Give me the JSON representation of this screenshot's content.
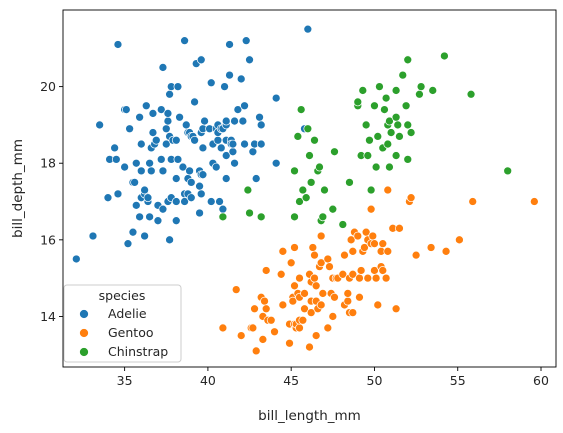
{
  "chart_data": {
    "type": "scatter",
    "xlabel": "bill_length_mm",
    "ylabel": "bill_depth_mm",
    "xlim": [
      31.3,
      60.9
    ],
    "ylim": [
      12.68,
      22.0
    ],
    "xticks": [
      35,
      40,
      45,
      50,
      55,
      60
    ],
    "yticks": [
      14,
      16,
      18,
      20
    ],
    "grid": false,
    "legend": {
      "title": "species",
      "position": "lower-left"
    },
    "series": [
      {
        "name": "Adelie",
        "color": "#1f77b4",
        "points": [
          [
            32.1,
            15.5
          ],
          [
            33.1,
            16.1
          ],
          [
            33.5,
            19.0
          ],
          [
            34.0,
            17.1
          ],
          [
            34.1,
            18.1
          ],
          [
            34.4,
            18.4
          ],
          [
            34.5,
            18.1
          ],
          [
            34.6,
            21.1
          ],
          [
            34.6,
            17.2
          ],
          [
            35.0,
            17.9
          ],
          [
            35.0,
            19.4
          ],
          [
            35.1,
            19.4
          ],
          [
            35.2,
            15.9
          ],
          [
            35.3,
            18.9
          ],
          [
            35.5,
            16.2
          ],
          [
            35.5,
            17.5
          ],
          [
            35.6,
            17.5
          ],
          [
            35.7,
            16.9
          ],
          [
            35.7,
            18.0
          ],
          [
            35.9,
            19.2
          ],
          [
            35.9,
            16.6
          ],
          [
            36.0,
            17.8
          ],
          [
            36.0,
            18.5
          ],
          [
            36.0,
            17.1
          ],
          [
            36.2,
            16.1
          ],
          [
            36.2,
            17.2
          ],
          [
            36.2,
            17.3
          ],
          [
            36.3,
            19.5
          ],
          [
            36.4,
            17.0
          ],
          [
            36.4,
            17.1
          ],
          [
            36.5,
            16.6
          ],
          [
            36.5,
            18.0
          ],
          [
            36.6,
            17.8
          ],
          [
            36.6,
            18.4
          ],
          [
            36.7,
            18.8
          ],
          [
            36.7,
            19.3
          ],
          [
            36.8,
            18.5
          ],
          [
            36.9,
            18.6
          ],
          [
            37.0,
            16.9
          ],
          [
            37.0,
            16.5
          ],
          [
            37.2,
            18.1
          ],
          [
            37.2,
            19.4
          ],
          [
            37.3,
            16.8
          ],
          [
            37.3,
            17.8
          ],
          [
            37.3,
            20.5
          ],
          [
            37.5,
            18.9
          ],
          [
            37.5,
            18.5
          ],
          [
            37.6,
            17.0
          ],
          [
            37.6,
            19.1
          ],
          [
            37.6,
            19.3
          ],
          [
            37.7,
            18.7
          ],
          [
            37.7,
            16.0
          ],
          [
            37.7,
            19.8
          ],
          [
            37.8,
            17.1
          ],
          [
            37.8,
            18.1
          ],
          [
            37.8,
            20.0
          ],
          [
            37.9,
            18.6
          ],
          [
            38.1,
            18.6
          ],
          [
            38.1,
            16.5
          ],
          [
            38.1,
            17.0
          ],
          [
            38.1,
            17.6
          ],
          [
            38.2,
            18.1
          ],
          [
            38.2,
            20.0
          ],
          [
            38.3,
            19.2
          ],
          [
            38.5,
            17.9
          ],
          [
            38.6,
            17.2
          ],
          [
            38.6,
            21.2
          ],
          [
            38.6,
            17.0
          ],
          [
            38.7,
            19.0
          ],
          [
            38.8,
            17.2
          ],
          [
            38.8,
            18.8
          ],
          [
            38.8,
            17.6
          ],
          [
            38.9,
            17.8
          ],
          [
            38.9,
            18.8
          ],
          [
            39.0,
            17.1
          ],
          [
            39.0,
            17.5
          ],
          [
            39.0,
            18.7
          ],
          [
            39.1,
            18.7
          ],
          [
            39.2,
            19.6
          ],
          [
            39.2,
            18.6
          ],
          [
            39.3,
            20.6
          ],
          [
            39.5,
            17.4
          ],
          [
            39.5,
            16.7
          ],
          [
            39.5,
            17.8
          ],
          [
            39.6,
            17.7
          ],
          [
            39.6,
            18.8
          ],
          [
            39.6,
            17.2
          ],
          [
            39.6,
            20.7
          ],
          [
            39.7,
            18.4
          ],
          [
            39.7,
            17.7
          ],
          [
            39.7,
            18.9
          ],
          [
            39.8,
            19.1
          ],
          [
            40.1,
            18.9
          ],
          [
            40.2,
            20.1
          ],
          [
            40.2,
            17.0
          ],
          [
            40.3,
            18.0
          ],
          [
            40.3,
            18.5
          ],
          [
            40.5,
            18.9
          ],
          [
            40.5,
            17.9
          ],
          [
            40.6,
            18.6
          ],
          [
            40.6,
            18.8
          ],
          [
            40.6,
            19.0
          ],
          [
            40.7,
            17.0
          ],
          [
            40.8,
            18.4
          ],
          [
            40.8,
            18.9
          ],
          [
            40.9,
            18.9
          ],
          [
            40.9,
            16.8
          ],
          [
            41.0,
            20.0
          ],
          [
            41.1,
            18.6
          ],
          [
            41.1,
            17.6
          ],
          [
            41.1,
            19.0
          ],
          [
            41.1,
            18.2
          ],
          [
            41.1,
            19.1
          ],
          [
            41.3,
            20.3
          ],
          [
            41.3,
            21.1
          ],
          [
            41.4,
            18.6
          ],
          [
            41.4,
            18.5
          ],
          [
            41.5,
            18.3
          ],
          [
            41.5,
            18.5
          ],
          [
            41.6,
            18.0
          ],
          [
            41.6,
            19.1
          ],
          [
            41.8,
            19.4
          ],
          [
            42.0,
            20.2
          ],
          [
            42.1,
            19.1
          ],
          [
            42.2,
            18.5
          ],
          [
            42.2,
            19.5
          ],
          [
            42.3,
            21.2
          ],
          [
            42.5,
            20.7
          ],
          [
            42.7,
            18.3
          ],
          [
            42.8,
            18.5
          ],
          [
            42.9,
            17.6
          ],
          [
            43.1,
            19.2
          ],
          [
            43.2,
            19.0
          ],
          [
            43.2,
            18.5
          ],
          [
            44.1,
            19.7
          ],
          [
            44.1,
            18.0
          ],
          [
            45.8,
            18.9
          ],
          [
            46.0,
            21.5
          ]
        ]
      },
      {
        "name": "Gentoo",
        "color": "#ff7f0e",
        "points": [
          [
            40.9,
            13.7
          ],
          [
            41.7,
            14.7
          ],
          [
            42.0,
            13.5
          ],
          [
            42.6,
            13.7
          ],
          [
            42.7,
            13.7
          ],
          [
            42.8,
            14.2
          ],
          [
            42.9,
            13.1
          ],
          [
            43.2,
            14.5
          ],
          [
            43.3,
            13.4
          ],
          [
            43.3,
            14.0
          ],
          [
            43.4,
            14.4
          ],
          [
            43.5,
            14.2
          ],
          [
            43.5,
            15.2
          ],
          [
            43.6,
            13.9
          ],
          [
            43.8,
            13.9
          ],
          [
            44.0,
            13.6
          ],
          [
            44.4,
            15.1
          ],
          [
            44.5,
            14.3
          ],
          [
            44.5,
            15.7
          ],
          [
            44.9,
            13.3
          ],
          [
            44.9,
            13.8
          ],
          [
            45.0,
            15.4
          ],
          [
            45.1,
            14.5
          ],
          [
            45.1,
            14.4
          ],
          [
            45.2,
            13.8
          ],
          [
            45.2,
            14.8
          ],
          [
            45.2,
            15.8
          ],
          [
            45.3,
            13.7
          ],
          [
            45.3,
            13.8
          ],
          [
            45.4,
            14.6
          ],
          [
            45.5,
            13.7
          ],
          [
            45.5,
            13.9
          ],
          [
            45.5,
            14.5
          ],
          [
            45.5,
            15.0
          ],
          [
            45.7,
            13.9
          ],
          [
            45.8,
            14.2
          ],
          [
            45.8,
            14.6
          ],
          [
            46.1,
            13.2
          ],
          [
            46.1,
            15.1
          ],
          [
            46.2,
            14.1
          ],
          [
            46.2,
            14.9
          ],
          [
            46.2,
            14.4
          ],
          [
            46.3,
            15.8
          ],
          [
            46.4,
            15.0
          ],
          [
            46.4,
            15.6
          ],
          [
            46.5,
            13.5
          ],
          [
            46.5,
            14.4
          ],
          [
            46.5,
            14.8
          ],
          [
            46.6,
            14.2
          ],
          [
            46.7,
            15.3
          ],
          [
            46.8,
            14.3
          ],
          [
            46.8,
            15.4
          ],
          [
            46.8,
            16.1
          ],
          [
            46.9,
            14.6
          ],
          [
            47.2,
            13.7
          ],
          [
            47.2,
            15.5
          ],
          [
            47.3,
            15.3
          ],
          [
            47.4,
            14.6
          ],
          [
            47.5,
            14.0
          ],
          [
            47.5,
            15.0
          ],
          [
            47.6,
            14.5
          ],
          [
            47.7,
            15.0
          ],
          [
            47.8,
            15.0
          ],
          [
            48.1,
            15.1
          ],
          [
            48.2,
            14.3
          ],
          [
            48.2,
            15.6
          ],
          [
            48.4,
            14.4
          ],
          [
            48.4,
            14.6
          ],
          [
            48.5,
            14.1
          ],
          [
            48.5,
            15.0
          ],
          [
            48.6,
            16.0
          ],
          [
            48.7,
            14.1
          ],
          [
            48.7,
            15.1
          ],
          [
            48.7,
            15.7
          ],
          [
            48.8,
            16.2
          ],
          [
            49.0,
            16.1
          ],
          [
            49.1,
            14.5
          ],
          [
            49.1,
            15.0
          ],
          [
            49.2,
            15.2
          ],
          [
            49.3,
            15.7
          ],
          [
            49.4,
            15.8
          ],
          [
            49.5,
            16.2
          ],
          [
            49.6,
            15.0
          ],
          [
            49.6,
            16.0
          ],
          [
            49.8,
            15.9
          ],
          [
            49.8,
            16.8
          ],
          [
            49.9,
            16.1
          ],
          [
            50.0,
            15.2
          ],
          [
            50.0,
            15.9
          ],
          [
            50.1,
            15.0
          ],
          [
            50.2,
            14.3
          ],
          [
            50.4,
            15.3
          ],
          [
            50.4,
            15.7
          ],
          [
            50.5,
            15.2
          ],
          [
            50.5,
            15.9
          ],
          [
            50.7,
            15.0
          ],
          [
            50.8,
            15.7
          ],
          [
            50.8,
            17.3
          ],
          [
            51.1,
            16.3
          ],
          [
            51.3,
            14.2
          ],
          [
            51.5,
            16.3
          ],
          [
            52.1,
            17.0
          ],
          [
            52.2,
            17.1
          ],
          [
            52.5,
            15.6
          ],
          [
            53.4,
            15.8
          ],
          [
            54.3,
            15.7
          ],
          [
            55.1,
            16.0
          ],
          [
            55.9,
            17.0
          ],
          [
            59.6,
            17.0
          ]
        ]
      },
      {
        "name": "Chinstrap",
        "color": "#2ca02c",
        "points": [
          [
            40.9,
            16.6
          ],
          [
            42.4,
            17.3
          ],
          [
            42.5,
            16.7
          ],
          [
            43.2,
            16.6
          ],
          [
            45.2,
            16.6
          ],
          [
            45.2,
            17.8
          ],
          [
            45.4,
            18.7
          ],
          [
            45.5,
            17.0
          ],
          [
            45.6,
            19.4
          ],
          [
            45.7,
            17.3
          ],
          [
            45.9,
            17.1
          ],
          [
            46.0,
            18.9
          ],
          [
            46.1,
            18.2
          ],
          [
            46.2,
            17.5
          ],
          [
            46.4,
            18.6
          ],
          [
            46.6,
            17.8
          ],
          [
            46.7,
            17.9
          ],
          [
            46.8,
            16.5
          ],
          [
            46.9,
            16.6
          ],
          [
            47.0,
            17.3
          ],
          [
            47.5,
            16.8
          ],
          [
            47.6,
            18.3
          ],
          [
            48.1,
            16.4
          ],
          [
            48.5,
            17.5
          ],
          [
            49.0,
            19.5
          ],
          [
            49.0,
            19.6
          ],
          [
            49.2,
            18.2
          ],
          [
            49.3,
            19.9
          ],
          [
            49.5,
            19.0
          ],
          [
            49.6,
            18.2
          ],
          [
            49.7,
            18.6
          ],
          [
            49.8,
            17.3
          ],
          [
            50.0,
            19.5
          ],
          [
            50.1,
            17.9
          ],
          [
            50.2,
            18.7
          ],
          [
            50.3,
            20.0
          ],
          [
            50.5,
            18.4
          ],
          [
            50.6,
            19.4
          ],
          [
            50.7,
            19.7
          ],
          [
            50.8,
            18.5
          ],
          [
            50.8,
            19.0
          ],
          [
            50.9,
            17.9
          ],
          [
            50.9,
            19.1
          ],
          [
            51.0,
            18.8
          ],
          [
            51.3,
            18.2
          ],
          [
            51.3,
            19.2
          ],
          [
            51.3,
            19.9
          ],
          [
            51.4,
            19.0
          ],
          [
            51.5,
            18.7
          ],
          [
            51.7,
            20.3
          ],
          [
            51.9,
            19.5
          ],
          [
            52.0,
            18.1
          ],
          [
            52.0,
            19.0
          ],
          [
            52.0,
            20.7
          ],
          [
            52.2,
            18.8
          ],
          [
            52.7,
            19.8
          ],
          [
            52.8,
            20.0
          ],
          [
            53.5,
            19.9
          ],
          [
            54.2,
            20.8
          ],
          [
            55.8,
            19.8
          ],
          [
            58.0,
            17.8
          ]
        ]
      }
    ]
  }
}
